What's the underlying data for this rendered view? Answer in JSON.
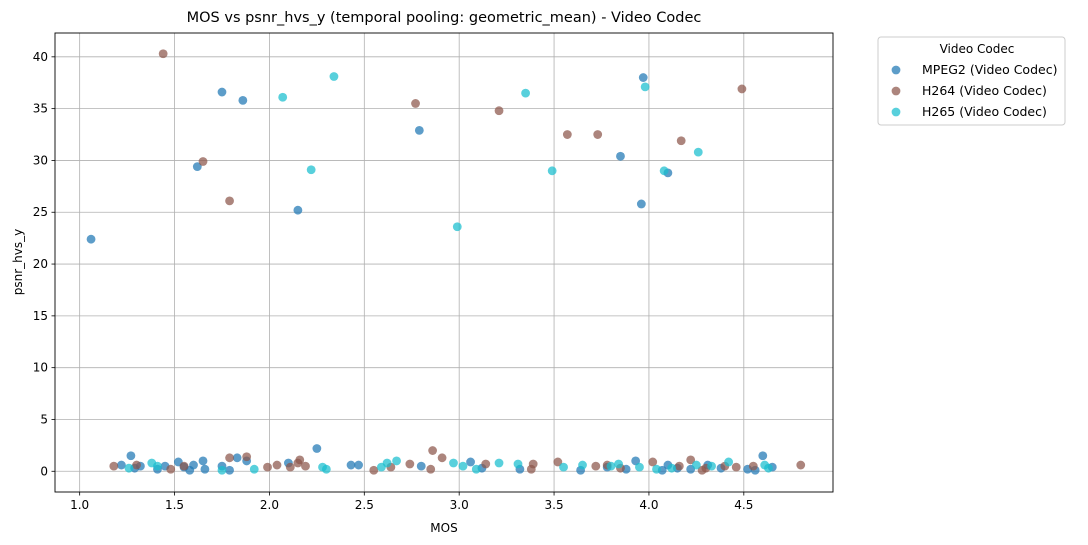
{
  "chart_data": {
    "type": "scatter",
    "title": "MOS vs psnr_hvs_y (temporal pooling: geometric_mean) - Video Codec",
    "xlabel": "MOS",
    "ylabel": "psnr_hvs_y",
    "xlim": [
      0.87,
      4.97
    ],
    "ylim": [
      -2.0,
      42.3
    ],
    "xticks": [
      1.0,
      1.5,
      2.0,
      2.5,
      3.0,
      3.5,
      4.0,
      4.5
    ],
    "xtick_labels": [
      "1.0",
      "1.5",
      "2.0",
      "2.5",
      "3.0",
      "3.5",
      "4.0",
      "4.5"
    ],
    "yticks": [
      0,
      5,
      10,
      15,
      20,
      25,
      30,
      35,
      40
    ],
    "ytick_labels": [
      "0",
      "5",
      "10",
      "15",
      "20",
      "25",
      "30",
      "35",
      "40"
    ],
    "grid": true,
    "legend": {
      "title": "Video Codec",
      "placement": "outside-upper-right"
    },
    "series": [
      {
        "name": "MPEG2 (Video Codec)",
        "color": "#1f77b4",
        "points": [
          [
            1.06,
            22.4
          ],
          [
            1.75,
            36.6
          ],
          [
            1.86,
            35.8
          ],
          [
            1.62,
            29.4
          ],
          [
            2.15,
            25.2
          ],
          [
            2.79,
            32.9
          ],
          [
            3.85,
            30.4
          ],
          [
            3.97,
            38.0
          ],
          [
            3.96,
            25.8
          ],
          [
            4.1,
            28.8
          ],
          [
            1.22,
            0.6
          ],
          [
            1.27,
            1.5
          ],
          [
            1.29,
            0.3
          ],
          [
            1.32,
            0.5
          ],
          [
            1.41,
            0.2
          ],
          [
            1.45,
            0.5
          ],
          [
            1.52,
            0.9
          ],
          [
            1.55,
            0.4
          ],
          [
            1.58,
            0.1
          ],
          [
            1.6,
            0.6
          ],
          [
            1.66,
            0.2
          ],
          [
            1.65,
            1.0
          ],
          [
            1.75,
            0.5
          ],
          [
            1.79,
            0.1
          ],
          [
            1.83,
            1.3
          ],
          [
            1.88,
            1.0
          ],
          [
            2.1,
            0.8
          ],
          [
            2.25,
            2.2
          ],
          [
            2.43,
            0.6
          ],
          [
            2.47,
            0.6
          ],
          [
            2.8,
            0.5
          ],
          [
            3.06,
            0.9
          ],
          [
            3.12,
            0.3
          ],
          [
            3.32,
            0.2
          ],
          [
            3.64,
            0.1
          ],
          [
            3.78,
            0.4
          ],
          [
            3.88,
            0.2
          ],
          [
            3.93,
            1.0
          ],
          [
            4.07,
            0.1
          ],
          [
            4.1,
            0.6
          ],
          [
            4.15,
            0.3
          ],
          [
            4.22,
            0.2
          ],
          [
            4.31,
            0.6
          ],
          [
            4.38,
            0.3
          ],
          [
            4.52,
            0.2
          ],
          [
            4.56,
            0.1
          ],
          [
            4.6,
            1.5
          ],
          [
            4.65,
            0.4
          ]
        ]
      },
      {
        "name": "H264 (Video Codec)",
        "color": "#8c564b",
        "points": [
          [
            1.44,
            40.3
          ],
          [
            1.65,
            29.9
          ],
          [
            1.79,
            26.1
          ],
          [
            2.77,
            35.5
          ],
          [
            3.21,
            34.8
          ],
          [
            3.57,
            32.5
          ],
          [
            3.73,
            32.5
          ],
          [
            4.17,
            31.9
          ],
          [
            4.49,
            36.9
          ],
          [
            1.18,
            0.5
          ],
          [
            1.3,
            0.6
          ],
          [
            1.48,
            0.2
          ],
          [
            1.55,
            0.5
          ],
          [
            1.79,
            1.3
          ],
          [
            1.88,
            1.4
          ],
          [
            1.99,
            0.4
          ],
          [
            2.04,
            0.6
          ],
          [
            2.11,
            0.4
          ],
          [
            2.15,
            0.8
          ],
          [
            2.16,
            1.1
          ],
          [
            2.19,
            0.5
          ],
          [
            2.55,
            0.1
          ],
          [
            2.64,
            0.4
          ],
          [
            2.74,
            0.7
          ],
          [
            2.85,
            0.2
          ],
          [
            2.86,
            2.0
          ],
          [
            2.91,
            1.3
          ],
          [
            3.14,
            0.7
          ],
          [
            3.38,
            0.2
          ],
          [
            3.39,
            0.7
          ],
          [
            3.52,
            0.9
          ],
          [
            3.72,
            0.5
          ],
          [
            3.78,
            0.6
          ],
          [
            3.85,
            0.3
          ],
          [
            4.02,
            0.9
          ],
          [
            4.16,
            0.5
          ],
          [
            4.22,
            1.1
          ],
          [
            4.28,
            0.1
          ],
          [
            4.3,
            0.3
          ],
          [
            4.4,
            0.5
          ],
          [
            4.46,
            0.4
          ],
          [
            4.55,
            0.5
          ],
          [
            4.8,
            0.6
          ]
        ]
      },
      {
        "name": "H265 (Video Codec)",
        "color": "#17becf",
        "points": [
          [
            2.07,
            36.1
          ],
          [
            2.22,
            29.1
          ],
          [
            2.34,
            38.1
          ],
          [
            2.99,
            23.6
          ],
          [
            3.35,
            36.5
          ],
          [
            3.49,
            29.0
          ],
          [
            3.98,
            37.1
          ],
          [
            4.08,
            29.0
          ],
          [
            4.26,
            30.8
          ],
          [
            1.26,
            0.3
          ],
          [
            1.38,
            0.8
          ],
          [
            1.41,
            0.5
          ],
          [
            1.75,
            0.1
          ],
          [
            1.92,
            0.2
          ],
          [
            2.28,
            0.4
          ],
          [
            2.3,
            0.2
          ],
          [
            2.59,
            0.4
          ],
          [
            2.62,
            0.8
          ],
          [
            2.67,
            1.0
          ],
          [
            2.97,
            0.8
          ],
          [
            3.02,
            0.5
          ],
          [
            3.09,
            0.2
          ],
          [
            3.21,
            0.8
          ],
          [
            3.31,
            0.7
          ],
          [
            3.55,
            0.4
          ],
          [
            3.65,
            0.6
          ],
          [
            3.8,
            0.5
          ],
          [
            3.84,
            0.7
          ],
          [
            3.95,
            0.4
          ],
          [
            4.04,
            0.2
          ],
          [
            4.12,
            0.3
          ],
          [
            4.25,
            0.6
          ],
          [
            4.33,
            0.5
          ],
          [
            4.42,
            0.9
          ],
          [
            4.61,
            0.6
          ],
          [
            4.63,
            0.3
          ]
        ]
      }
    ]
  }
}
